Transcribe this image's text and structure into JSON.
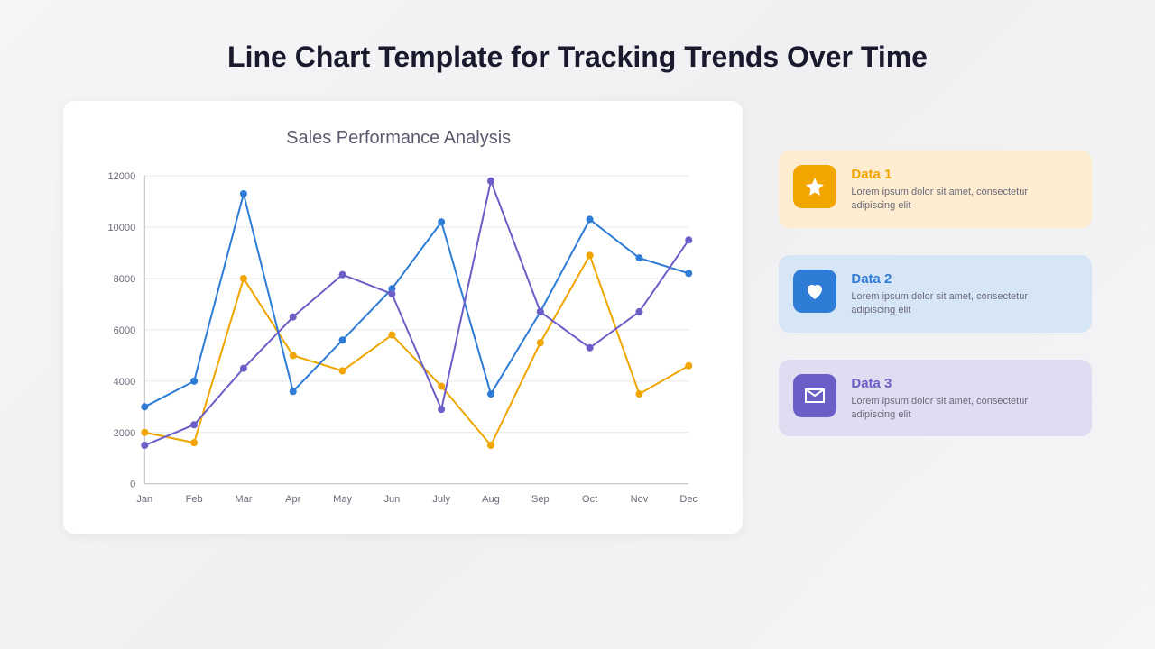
{
  "title": "Line Chart Template for Tracking Trends Over Time",
  "chart": {
    "type": "line",
    "title": "Sales Performance Analysis",
    "title_fontsize": 20,
    "title_color": "#5a5a6e",
    "background_color": "#ffffff",
    "grid_color": "#e8e8ec",
    "axis_color": "#c0c0c8",
    "label_fontsize": 11,
    "label_color": "#6a6a7a",
    "categories": [
      "Jan",
      "Feb",
      "Mar",
      "Apr",
      "May",
      "Jun",
      "July",
      "Aug",
      "Sep",
      "Oct",
      "Nov",
      "Dec"
    ],
    "ylim": [
      0,
      12000
    ],
    "ytick_step": 2000,
    "yticks": [
      0,
      2000,
      4000,
      6000,
      8000,
      10000,
      12000
    ],
    "marker_radius": 4,
    "line_width": 2,
    "series": [
      {
        "name": "Data 1",
        "color": "#f0a500",
        "values": [
          2000,
          1600,
          8000,
          5000,
          4400,
          5800,
          3800,
          1500,
          5500,
          8900,
          3500,
          4600
        ]
      },
      {
        "name": "Data 2",
        "color": "#2e7cd6",
        "values": [
          3000,
          4000,
          11300,
          3600,
          5600,
          7600,
          10200,
          3500,
          6700,
          10300,
          8800,
          8200
        ]
      },
      {
        "name": "Data 3",
        "color": "#6b5fc7",
        "values": [
          1500,
          2300,
          4500,
          6500,
          8150,
          7400,
          2900,
          11800,
          6700,
          5300,
          6700,
          9500
        ]
      }
    ]
  },
  "legend": {
    "items": [
      {
        "title": "Data 1",
        "desc": "Lorem ipsum dolor sit amet, consectetur adipiscing elit",
        "icon": "star",
        "icon_bg": "#f0a500",
        "card_bg": "#fdeccf",
        "title_color": "#f0a500"
      },
      {
        "title": "Data 2",
        "desc": "Lorem ipsum dolor sit amet, consectetur adipiscing elit",
        "icon": "heart",
        "icon_bg": "#2e7cd6",
        "card_bg": "#d7e6f7",
        "title_color": "#2e7cd6"
      },
      {
        "title": "Data 3",
        "desc": "Lorem ipsum dolor sit amet, consectetur adipiscing elit",
        "icon": "mail",
        "icon_bg": "#6b5fc7",
        "card_bg": "#e0ddf2",
        "title_color": "#6b5fc7"
      }
    ]
  }
}
